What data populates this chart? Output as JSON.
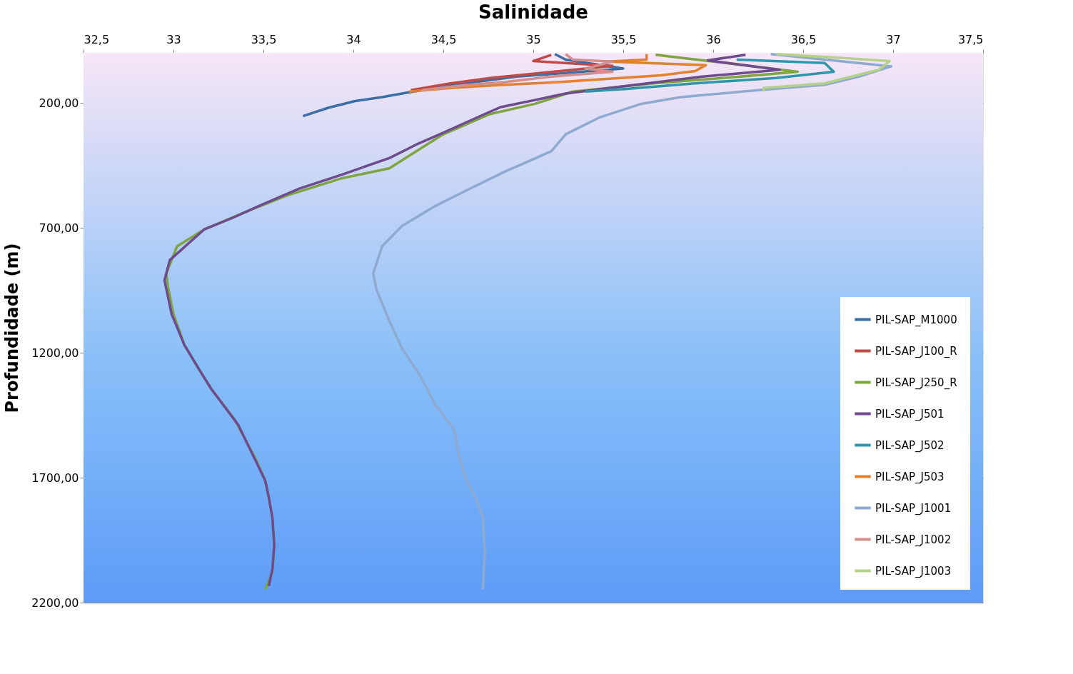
{
  "chart_data": {
    "type": "line",
    "title": "Salinidade",
    "ylabel": "Profundidade (m)",
    "xlim": [
      32.5,
      37.5
    ],
    "xticks": [
      {
        "value": 32.5,
        "label": "32,5"
      },
      33,
      {
        "value": 33.5,
        "label": "33,5"
      },
      34,
      {
        "value": 34.5,
        "label": "34,5"
      },
      35,
      {
        "value": 35.5,
        "label": "35,5"
      },
      36,
      {
        "value": 36.5,
        "label": "36,5"
      },
      37,
      {
        "value": 37.5,
        "label": "37,5"
      }
    ],
    "ylim": [
      2200,
      0
    ],
    "yticks": [
      {
        "value": 200,
        "label": "200,00"
      },
      {
        "value": 700,
        "label": "700,00"
      },
      {
        "value": 1200,
        "label": "1200,00"
      },
      {
        "value": 1700,
        "label": "1700,00"
      },
      {
        "value": 2200,
        "label": "2200,00"
      }
    ],
    "grid": "y",
    "legend": "bottom right",
    "marker": "none",
    "line_style": "solid",
    "series": [
      {
        "name": "PIL-SAP_M1000",
        "color": "#3a6ea5",
        "x": [
          35.12,
          35.18,
          35.5,
          34.91,
          34.54,
          34.31,
          34.16,
          34.01,
          33.86,
          33.72
        ],
        "values": [
          5,
          27,
          63,
          95,
          130,
          158,
          177,
          193,
          220,
          253
        ]
      },
      {
        "name": "PIL-SAP_J100_R",
        "color": "#be4b48",
        "x": [
          35.1,
          35.0,
          35.44,
          34.99,
          34.76,
          34.54,
          34.32
        ],
        "values": [
          8,
          33,
          52,
          84,
          101,
          122,
          149
        ]
      },
      {
        "name": "PIL-SAP_J250_R",
        "color": "#7ea53f",
        "x": [
          35.68,
          36.0,
          36.47,
          36.05,
          35.67,
          35.22,
          35.01,
          34.76,
          34.5,
          34.38,
          34.2,
          33.93,
          33.63,
          33.44,
          33.33,
          33.17,
          33.02,
          32.96,
          32.97,
          33.0,
          33.06,
          33.14,
          33.21,
          33.34,
          33.37,
          33.46,
          33.51,
          33.53,
          33.55,
          33.56,
          33.55,
          33.51
        ],
        "values": [
          8,
          35,
          76,
          101,
          122,
          155,
          204,
          245,
          326,
          380,
          462,
          503,
          571,
          625,
          658,
          707,
          774,
          883,
          938,
          1046,
          1168,
          1264,
          1345,
          1467,
          1508,
          1630,
          1712,
          1780,
          1861,
          1970,
          2079,
          2147
        ]
      },
      {
        "name": "PIL-SAP_J501",
        "color": "#6e4b8f",
        "x": [
          36.18,
          35.97,
          36.37,
          35.94,
          35.48,
          35.18,
          34.82,
          34.73,
          34.48,
          34.35,
          34.2,
          33.93,
          33.7,
          33.48,
          33.33,
          33.17,
          32.98,
          32.95,
          32.99,
          33.06,
          33.14,
          33.21,
          33.36,
          33.45,
          33.51,
          33.53,
          33.55,
          33.56,
          33.55,
          33.53
        ],
        "values": [
          8,
          30,
          68,
          95,
          136,
          163,
          217,
          245,
          326,
          367,
          421,
          489,
          543,
          611,
          660,
          707,
          829,
          910,
          1046,
          1168,
          1264,
          1345,
          1489,
          1622,
          1712,
          1780,
          1861,
          1970,
          2065,
          2133
        ]
      },
      {
        "name": "PIL-SAP_J502",
        "color": "#2e96a8",
        "x": [
          36.13,
          36.62,
          36.67,
          36.35,
          35.9,
          35.52,
          35.29
        ],
        "values": [
          27,
          41,
          76,
          101,
          122,
          144,
          155
        ]
      },
      {
        "name": "PIL-SAP_J503",
        "color": "#e3812f",
        "x": [
          35.63,
          35.63,
          35.41,
          35.96,
          35.9,
          35.71,
          35.14,
          34.84,
          34.54,
          34.31
        ],
        "values": [
          5,
          27,
          35,
          49,
          73,
          90,
          117,
          128,
          141,
          155
        ]
      },
      {
        "name": "PIL-SAP_J1001",
        "color": "#8faad0",
        "x": [
          36.32,
          36.99,
          36.81,
          36.62,
          36.24,
          35.82,
          35.6,
          35.37,
          35.18,
          35.1,
          34.84,
          34.65,
          34.46,
          34.27,
          34.16,
          34.11,
          34.13,
          34.2,
          34.27,
          34.37,
          34.46,
          34.56,
          34.58,
          34.62,
          34.68,
          34.72,
          34.73,
          34.72
        ],
        "values": [
          5,
          54,
          95,
          128,
          150,
          177,
          204,
          258,
          326,
          394,
          476,
          543,
          611,
          693,
          774,
          883,
          951,
          1073,
          1182,
          1291,
          1413,
          1508,
          1590,
          1698,
          1780,
          1861,
          1997,
          2147
        ]
      },
      {
        "name": "PIL-SAP_J1002",
        "color": "#d38f8b",
        "x": [
          35.18,
          35.22,
          35.44,
          35.29,
          35.44,
          35.1,
          34.84,
          34.61,
          34.38
        ],
        "values": [
          5,
          27,
          35,
          63,
          76,
          95,
          117,
          130,
          149
        ]
      },
      {
        "name": "PIL-SAP_J1003",
        "color": "#b5d18a",
        "x": [
          36.35,
          36.69,
          36.98,
          36.92,
          36.77,
          36.62,
          36.28,
          36.28
        ],
        "values": [
          5,
          19,
          33,
          68,
          95,
          122,
          141,
          155
        ]
      }
    ]
  }
}
